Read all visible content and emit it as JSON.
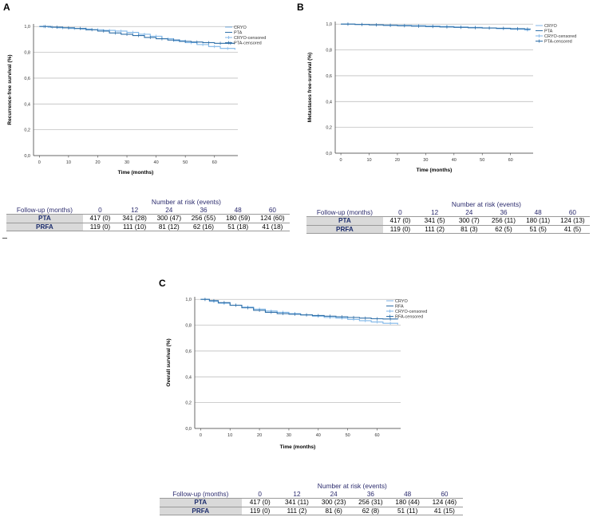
{
  "panels": [
    {
      "letter": "A",
      "chart_data": {
        "type": "line",
        "title": "",
        "xlabel": "Time (months)",
        "ylabel": "Recurrence-free survival (%)",
        "xlim": [
          -2,
          68
        ],
        "ylim": [
          0,
          1.02
        ],
        "xticks": [
          "0",
          "10",
          "20",
          "30",
          "40",
          "50",
          "60"
        ],
        "yticks": [
          "0,0",
          "0,2",
          "0,4",
          "0,6",
          "0,8",
          "1,0"
        ],
        "legend": [
          "CRYO",
          "PTA",
          "CRYO-censored",
          "PTA-censored"
        ],
        "legend_position": "top-right",
        "series": [
          {
            "name": "CRYO",
            "x": [
              0,
              3,
              6,
              10,
              14,
              18,
              22,
              26,
              30,
              34,
              38,
              42,
              46,
              50,
              54,
              58,
              62,
              67
            ],
            "y": [
              1.0,
              0.995,
              0.99,
              0.985,
              0.98,
              0.975,
              0.97,
              0.965,
              0.955,
              0.94,
              0.925,
              0.905,
              0.89,
              0.875,
              0.86,
              0.845,
              0.83,
              0.82
            ]
          },
          {
            "name": "PTA",
            "x": [
              0,
              4,
              8,
              12,
              16,
              20,
              24,
              28,
              32,
              36,
              40,
              44,
              48,
              52,
              56,
              60,
              64,
              67
            ],
            "y": [
              1.0,
              0.995,
              0.99,
              0.985,
              0.975,
              0.965,
              0.95,
              0.94,
              0.93,
              0.915,
              0.905,
              0.895,
              0.885,
              0.88,
              0.875,
              0.87,
              0.87,
              0.87
            ]
          }
        ]
      },
      "risk": {
        "title": "Number at risk (events)",
        "header_label": "Follow-up (months)",
        "timepoints": [
          "0",
          "12",
          "24",
          "36",
          "48",
          "60"
        ],
        "rows": [
          {
            "label": "PTA",
            "values": [
              "417 (0)",
              "341 (28)",
              "300 (47)",
              "256 (55)",
              "180 (59)",
              "124 (60)"
            ]
          },
          {
            "label": "PRFA",
            "values": [
              "119 (0)",
              "111 (10)",
              "81 (12)",
              "62 (16)",
              "51 (18)",
              "41 (18)"
            ]
          }
        ]
      }
    },
    {
      "letter": "B",
      "chart_data": {
        "type": "line",
        "title": "",
        "xlabel": "Time (months)",
        "ylabel": "Metastases free-survival (%)",
        "xlim": [
          -2,
          68
        ],
        "ylim": [
          0,
          1.02
        ],
        "xticks": [
          "0",
          "10",
          "20",
          "30",
          "40",
          "50",
          "60"
        ],
        "yticks": [
          "0,0",
          "0,2",
          "0,4",
          "0,6",
          "0,8",
          "1,0"
        ],
        "legend": [
          "CRYO",
          "PTA",
          "CRYO-censored",
          "PTA-censored"
        ],
        "legend_position": "top-right",
        "series": [
          {
            "name": "CRYO",
            "x": [
              0,
              5,
              10,
              15,
              20,
              25,
              30,
              35,
              40,
              45,
              50,
              55,
              60,
              65,
              67
            ],
            "y": [
              1.0,
              0.998,
              0.995,
              0.993,
              0.99,
              0.988,
              0.985,
              0.982,
              0.978,
              0.975,
              0.97,
              0.965,
              0.96,
              0.955,
              0.955
            ]
          },
          {
            "name": "PTA",
            "x": [
              0,
              5,
              10,
              15,
              20,
              25,
              30,
              35,
              40,
              45,
              50,
              55,
              60,
              65,
              67
            ],
            "y": [
              1.0,
              0.997,
              0.994,
              0.99,
              0.987,
              0.984,
              0.981,
              0.978,
              0.975,
              0.972,
              0.97,
              0.968,
              0.965,
              0.962,
              0.96
            ]
          }
        ]
      },
      "risk": {
        "title": "Number at risk (events)",
        "header_label": "Follow-up (months)",
        "timepoints": [
          "0",
          "12",
          "24",
          "36",
          "48",
          "60"
        ],
        "rows": [
          {
            "label": "PTA",
            "values": [
              "417 (0)",
              "341 (5)",
              "300 (7)",
              "256 (11)",
              "180 (11)",
              "124 (13)"
            ]
          },
          {
            "label": "PRFA",
            "values": [
              "119 (0)",
              "111 (2)",
              "81 (3)",
              "62 (5)",
              "51 (5)",
              "41 (5)"
            ]
          }
        ]
      }
    },
    {
      "letter": "C",
      "chart_data": {
        "type": "line",
        "title": "",
        "xlabel": "Time (months)",
        "ylabel": "Overall survival (%)",
        "xlim": [
          -2,
          68
        ],
        "ylim": [
          0,
          1.02
        ],
        "xticks": [
          "0",
          "10",
          "20",
          "30",
          "40",
          "50",
          "60"
        ],
        "yticks": [
          "0,0",
          "0,2",
          "0,4",
          "0,6",
          "0,8",
          "1,0"
        ],
        "legend": [
          "CRYO",
          "RFA",
          "CRYO-censored",
          "RFA-censored"
        ],
        "legend_position": "top-right",
        "series": [
          {
            "name": "CRYO",
            "x": [
              0,
              3,
              6,
              10,
              14,
              18,
              22,
              26,
              30,
              34,
              38,
              42,
              46,
              50,
              54,
              58,
              62,
              67
            ],
            "y": [
              1.0,
              0.985,
              0.97,
              0.955,
              0.94,
              0.925,
              0.91,
              0.9,
              0.89,
              0.88,
              0.87,
              0.86,
              0.855,
              0.845,
              0.835,
              0.825,
              0.815,
              0.805
            ]
          },
          {
            "name": "RFA",
            "x": [
              0,
              3,
              6,
              10,
              14,
              18,
              22,
              26,
              30,
              34,
              38,
              42,
              46,
              50,
              54,
              58,
              62,
              67
            ],
            "y": [
              1.0,
              0.99,
              0.975,
              0.955,
              0.935,
              0.915,
              0.9,
              0.89,
              0.885,
              0.88,
              0.875,
              0.87,
              0.865,
              0.86,
              0.855,
              0.85,
              0.848,
              0.845
            ]
          }
        ]
      },
      "risk": {
        "title": "Number at risk (events)",
        "header_label": "Follow-up (months)",
        "timepoints": [
          "0",
          "12",
          "24",
          "36",
          "48",
          "60"
        ],
        "rows": [
          {
            "label": "PTA",
            "values": [
              "417 (0)",
              "341 (11)",
              "300 (23)",
              "256 (31)",
              "180 (44)",
              "124 (46)"
            ]
          },
          {
            "label": "PRFA",
            "values": [
              "119 (0)",
              "111 (2)",
              "81 (6)",
              "62 (8)",
              "51 (11)",
              "41 (15)"
            ]
          }
        ]
      }
    }
  ],
  "colors": {
    "cryo": "#7fb6e8",
    "pta": "#2f6fa8",
    "grid": "#bfbfbf",
    "axis": "#444444"
  }
}
